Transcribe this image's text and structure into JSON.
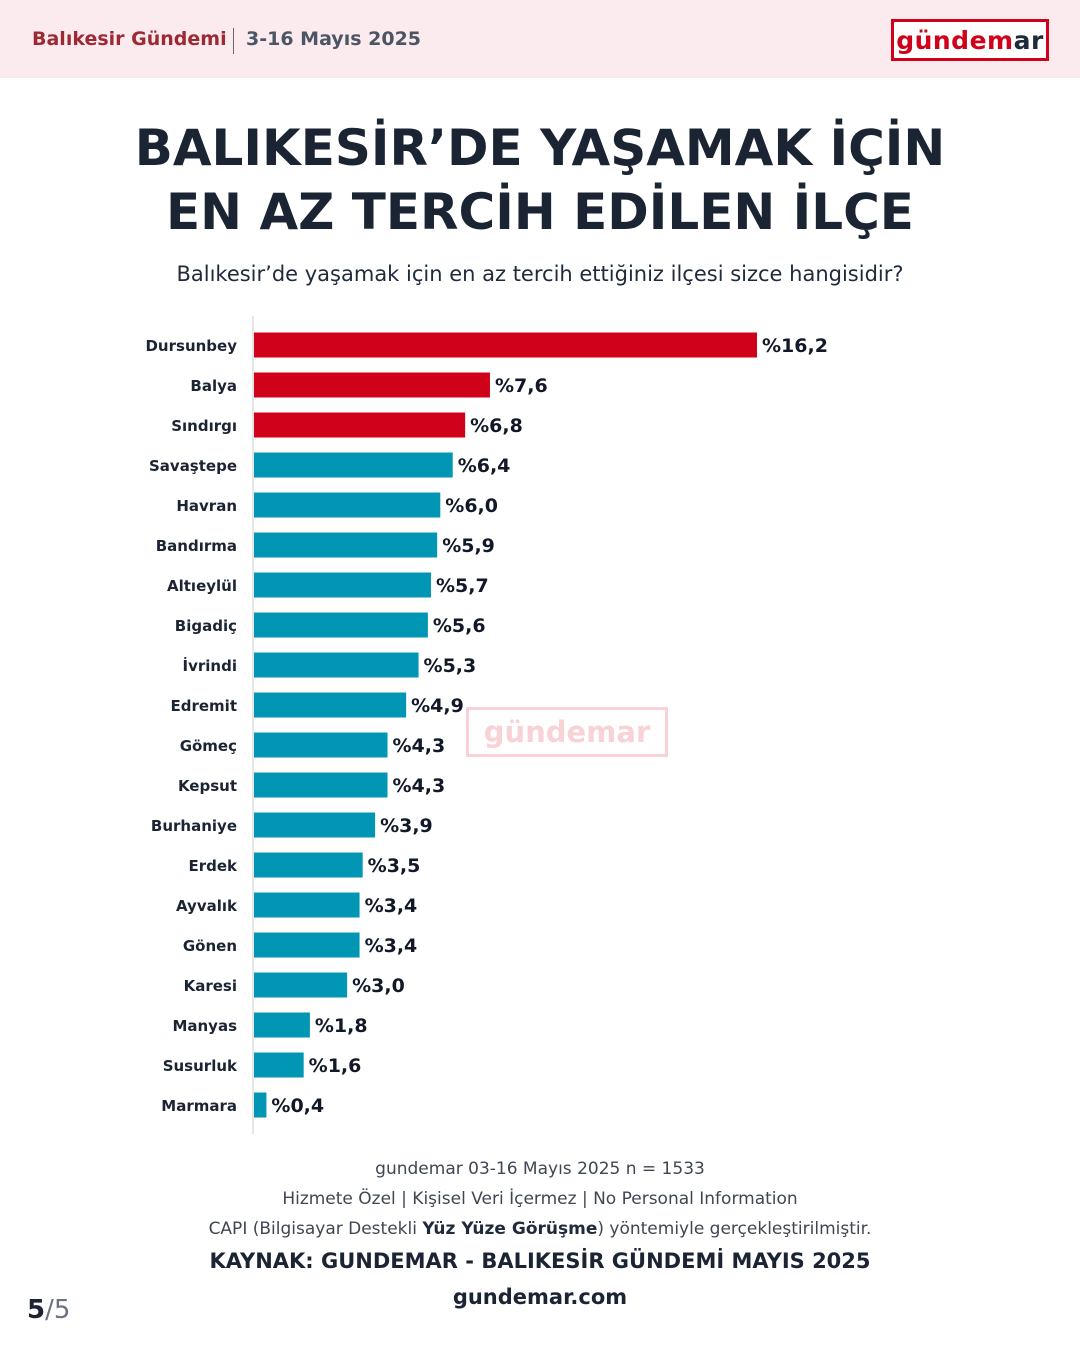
{
  "header": {
    "report_name": "Balıkesir Gündemi",
    "period": "3-16 Mayıs 2025",
    "logo_part1": "gündem",
    "logo_part2": "ar"
  },
  "title_line1": "BALIKESİR’DE YAŞAMAK İÇİN",
  "title_line2": "EN AZ TERCİH EDİLEN İLÇE",
  "question": "Balıkesir’de yaşamak için en az tercih ettiğiniz ilçesi sizce hangisidir?",
  "watermark": "gündemar",
  "colors": {
    "highlight": "#d0021b",
    "default": "#0096b4",
    "brand": "#d0021b"
  },
  "chart_data": {
    "type": "bar",
    "orientation": "horizontal",
    "value_prefix": "%",
    "highlight_top_n": 3,
    "categories": [
      "Dursunbey",
      "Balya",
      "Sındırgı",
      "Savaştepe",
      "Havran",
      "Bandırma",
      "Altıeylül",
      "Bigadiç",
      "İvrindi",
      "Edremit",
      "Gömeç",
      "Kepsut",
      "Burhaniye",
      "Erdek",
      "Ayvalık",
      "Gönen",
      "Karesi",
      "Manyas",
      "Susurluk",
      "Marmara"
    ],
    "values": [
      16.2,
      7.6,
      6.8,
      6.4,
      6.0,
      5.9,
      5.7,
      5.6,
      5.3,
      4.9,
      4.3,
      4.3,
      3.9,
      3.5,
      3.4,
      3.4,
      3.0,
      1.8,
      1.6,
      0.4
    ],
    "labels": [
      "%16,2",
      "%7,6",
      "%6,8",
      "%6,4",
      "%6,0",
      "%5,9",
      "%5,7",
      "%5,6",
      "%5,3",
      "%4,9",
      "%4,3",
      "%4,3",
      "%3,9",
      "%3,5",
      "%3,4",
      "%3,4",
      "%3,0",
      "%1,8",
      "%1,6",
      "%0,4"
    ],
    "xlim": [
      0,
      16.2
    ],
    "grid": false,
    "legend": "none"
  },
  "footer": {
    "line1": "gundemar 03-16 Mayıs 2025 n = 1533",
    "line2": "Hizmete Özel | Kişisel Veri İçermez | No Personal Information",
    "line3_a": "CAPI (Bilgisayar Destekli ",
    "line3_b": "Yüz Yüze Görüşme",
    "line3_c": ") yöntemiyle gerçekleştirilmiştir.",
    "source": "KAYNAK: GUNDEMAR - BALIKESİR GÜNDEMİ MAYIS 2025",
    "website": "gundemar.com"
  },
  "pager": {
    "current": "5",
    "separator": "/",
    "total": "5"
  }
}
